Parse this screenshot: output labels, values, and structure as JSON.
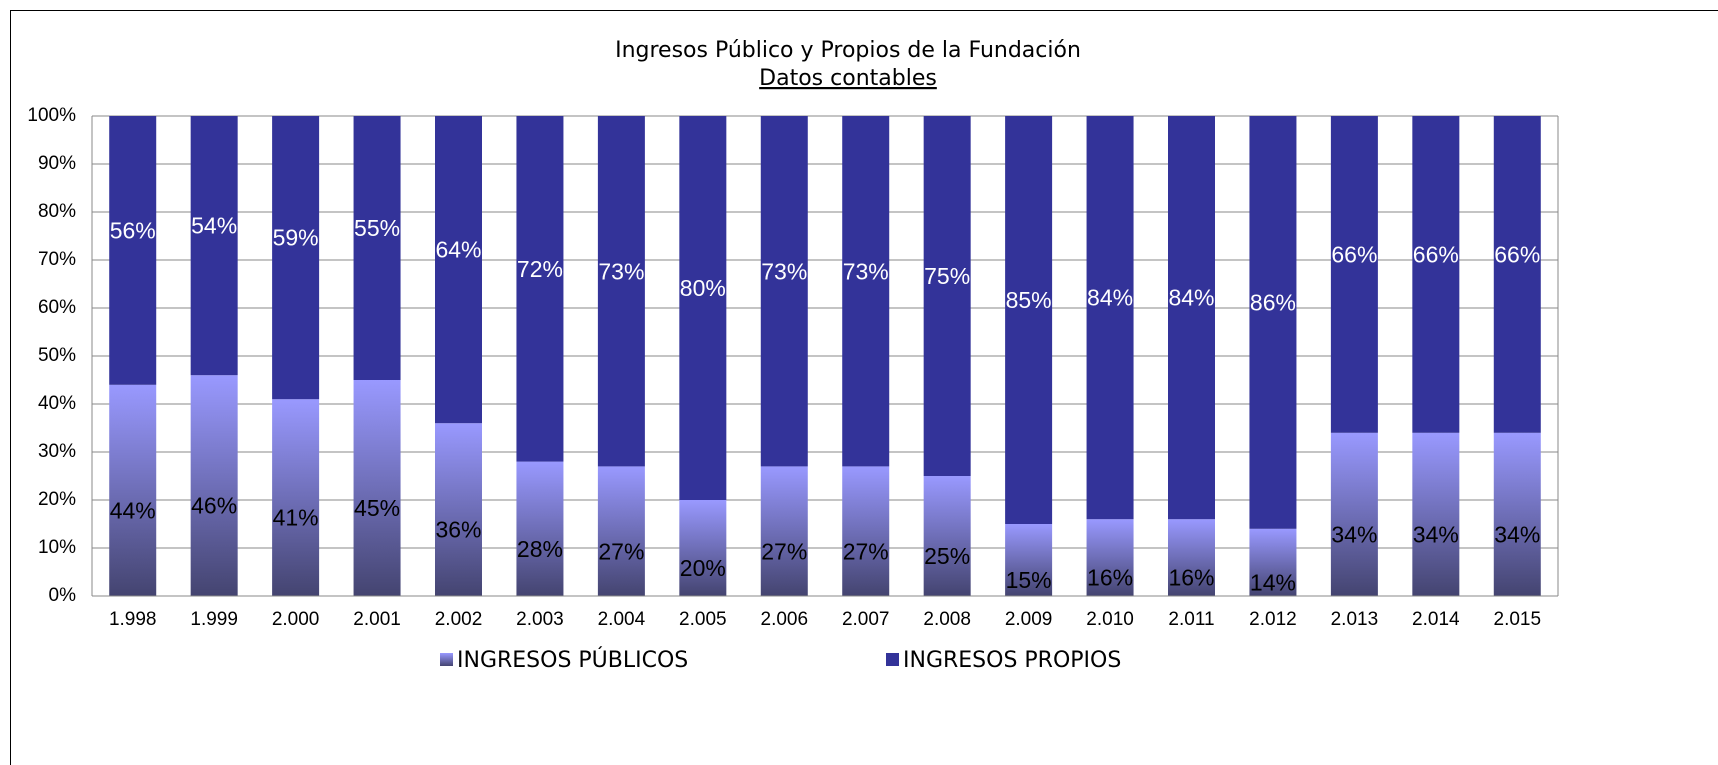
{
  "chart_data": {
    "type": "stacked_bar",
    "title": "Ingresos Público y Propios de la Fundación",
    "subtitle": "Datos contables",
    "categories": [
      "1.998",
      "1.999",
      "2.000",
      "2.001",
      "2.002",
      "2.003",
      "2.004",
      "2.005",
      "2.006",
      "2.007",
      "2.008",
      "2.009",
      "2.010",
      "2.011",
      "2.012",
      "2.013",
      "2.014",
      "2.015"
    ],
    "series": [
      {
        "name": "INGRESOS PÚBLICOS",
        "color": "#9999ff",
        "values": [
          44,
          46,
          41,
          45,
          36,
          28,
          27,
          20,
          27,
          27,
          25,
          15,
          16,
          16,
          14,
          34,
          34,
          34
        ],
        "value_labels": [
          "44%",
          "46%",
          "41%",
          "45%",
          "36%",
          "28%",
          "27%",
          "20%",
          "27%",
          "27%",
          "25%",
          "15%",
          "16%",
          "16%",
          "14%",
          "34%",
          "34%",
          "34%"
        ]
      },
      {
        "name": "INGRESOS PROPIOS",
        "color": "#333399",
        "values": [
          56,
          54,
          59,
          55,
          64,
          72,
          73,
          80,
          73,
          73,
          75,
          85,
          84,
          84,
          86,
          66,
          66,
          66
        ],
        "value_labels": [
          "56%",
          "54%",
          "59%",
          "55%",
          "64%",
          "72%",
          "73%",
          "80%",
          "73%",
          "73%",
          "75%",
          "85%",
          "84%",
          "84%",
          "86%",
          "66%",
          "66%",
          "66%"
        ]
      }
    ],
    "ylim": [
      0,
      100
    ],
    "yticks": [
      {
        "value": 0,
        "label": "0%"
      },
      {
        "value": 10,
        "label": "10%"
      },
      {
        "value": 20,
        "label": "20%"
      },
      {
        "value": 30,
        "label": "30%"
      },
      {
        "value": 40,
        "label": "40%"
      },
      {
        "value": 50,
        "label": "50%"
      },
      {
        "value": 60,
        "label": "60%"
      },
      {
        "value": 70,
        "label": "70%"
      },
      {
        "value": 80,
        "label": "80%"
      },
      {
        "value": 90,
        "label": "90%"
      },
      {
        "value": 100,
        "label": "100%"
      }
    ],
    "grid": true,
    "legend": "bottom"
  }
}
